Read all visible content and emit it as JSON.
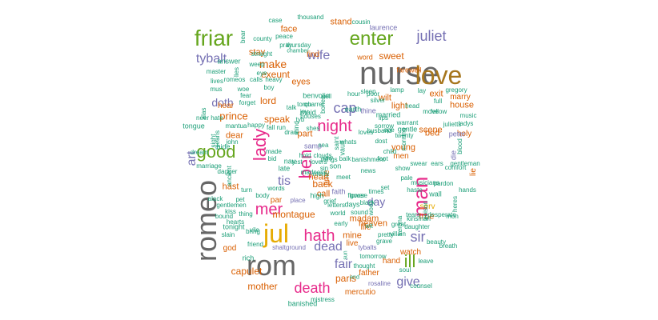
{
  "palette": {
    "slate": "#666666",
    "gold": "#a6761d",
    "magenta": "#e7298a",
    "green": "#66a61e",
    "purple": "#7570b3",
    "orange": "#d95f02",
    "yellow": "#e6ab02",
    "teal": "#1b9e77"
  },
  "words": [
    {
      "text": "nurse",
      "color": "slate"
    },
    {
      "text": "rom",
      "color": "slate"
    },
    {
      "text": "romeo",
      "color": "slate"
    },
    {
      "text": "love",
      "color": "gold"
    },
    {
      "text": "jul",
      "color": "yellow"
    },
    {
      "text": "friar",
      "color": "green"
    },
    {
      "text": "enter",
      "color": "green"
    },
    {
      "text": "juliet",
      "color": "purple"
    },
    {
      "text": "tybalt",
      "color": "purple"
    },
    {
      "text": "good",
      "color": "green"
    },
    {
      "text": "night",
      "color": "magenta"
    },
    {
      "text": "man",
      "color": "magenta"
    },
    {
      "text": "lady",
      "color": "magenta"
    },
    {
      "text": "mer",
      "color": "magenta"
    },
    {
      "text": "hath",
      "color": "magenta"
    },
    {
      "text": "death",
      "color": "magenta"
    },
    {
      "text": "ben",
      "color": "magenta"
    },
    {
      "text": "ill",
      "color": "green"
    },
    {
      "text": "cap",
      "color": "purple"
    },
    {
      "text": "sir",
      "color": "purple"
    },
    {
      "text": "dead",
      "color": "purple"
    },
    {
      "text": "fair",
      "color": "purple"
    },
    {
      "text": "give",
      "color": "purple"
    },
    {
      "text": "wife",
      "color": "purple"
    },
    {
      "text": "day",
      "color": "purple"
    },
    {
      "text": "art",
      "color": "purple"
    },
    {
      "text": "doth",
      "color": "purple"
    },
    {
      "text": "tis",
      "color": "purple"
    },
    {
      "text": "make",
      "color": "orange"
    },
    {
      "text": "exeunt",
      "color": "orange"
    },
    {
      "text": "lord",
      "color": "orange"
    },
    {
      "text": "prince",
      "color": "orange"
    },
    {
      "text": "speak",
      "color": "orange"
    },
    {
      "text": "montague",
      "color": "orange"
    },
    {
      "text": "capulet",
      "color": "orange"
    },
    {
      "text": "paris",
      "color": "orange"
    },
    {
      "text": "mother",
      "color": "orange"
    },
    {
      "text": "mercutio",
      "color": "orange"
    },
    {
      "text": "father",
      "color": "orange"
    },
    {
      "text": "heaven",
      "color": "orange"
    },
    {
      "text": "house",
      "color": "orange"
    },
    {
      "text": "sweet",
      "color": "orange"
    },
    {
      "text": "face",
      "color": "orange"
    },
    {
      "text": "stay",
      "color": "orange"
    },
    {
      "text": "find",
      "color": "orange"
    },
    {
      "text": "eyes",
      "color": "orange"
    },
    {
      "text": "hand",
      "color": "orange"
    },
    {
      "text": "back",
      "color": "orange"
    },
    {
      "text": "heart",
      "color": "orange"
    },
    {
      "text": "call",
      "color": "orange"
    },
    {
      "text": "mine",
      "color": "orange"
    },
    {
      "text": "watch",
      "color": "orange"
    },
    {
      "text": "true",
      "color": "orange"
    },
    {
      "text": "bed",
      "color": "orange"
    },
    {
      "text": "exit",
      "color": "orange"
    },
    {
      "text": "marry",
      "color": "orange"
    },
    {
      "text": "scene",
      "color": "orange"
    },
    {
      "text": "young",
      "color": "orange"
    },
    {
      "text": "light",
      "color": "orange"
    },
    {
      "text": "stand",
      "color": "orange"
    },
    {
      "text": "word",
      "color": "orange"
    },
    {
      "text": "farewell",
      "color": "orange"
    },
    {
      "text": "hast",
      "color": "orange"
    },
    {
      "text": "dear",
      "color": "orange"
    },
    {
      "text": "god",
      "color": "orange"
    },
    {
      "text": "par",
      "color": "orange"
    },
    {
      "text": "part",
      "color": "orange"
    },
    {
      "text": "madam",
      "color": "orange"
    },
    {
      "text": "live",
      "color": "orange"
    },
    {
      "text": "life",
      "color": "orange"
    },
    {
      "text": "wilt",
      "color": "orange"
    },
    {
      "text": "men",
      "color": "orange"
    },
    {
      "text": "holy",
      "color": "orange"
    },
    {
      "text": "lie",
      "color": "orange"
    },
    {
      "text": "hear",
      "color": "orange"
    },
    {
      "text": "time",
      "color": "orange"
    },
    {
      "text": "serv",
      "color": "yellow"
    },
    {
      "text": "die",
      "color": "purple"
    },
    {
      "text": "peter",
      "color": "purple"
    },
    {
      "text": "laurence",
      "color": "purple"
    },
    {
      "text": "shaltground",
      "color": "purple"
    },
    {
      "text": "thine",
      "color": "purple"
    },
    {
      "text": "samp",
      "color": "purple"
    },
    {
      "text": "faith",
      "color": "purple"
    },
    {
      "text": "place",
      "color": "purple"
    },
    {
      "text": "tybalts",
      "color": "purple"
    },
    {
      "text": "rosaline",
      "color": "purple"
    },
    {
      "text": "banished",
      "color": "teal"
    },
    {
      "text": "mistress",
      "color": "teal"
    },
    {
      "text": "tomorrow",
      "color": "teal"
    },
    {
      "text": "thought",
      "color": "teal"
    },
    {
      "text": "soul",
      "color": "teal"
    },
    {
      "text": "leave",
      "color": "teal"
    },
    {
      "text": "end",
      "color": "teal"
    },
    {
      "text": "sun",
      "color": "teal"
    },
    {
      "text": "rich",
      "color": "teal"
    },
    {
      "text": "friend",
      "color": "teal"
    },
    {
      "text": "tonight",
      "color": "teal"
    },
    {
      "text": "slain",
      "color": "teal"
    },
    {
      "text": "kiss",
      "color": "teal"
    },
    {
      "text": "bring",
      "color": "teal"
    },
    {
      "text": "thing",
      "color": "teal"
    },
    {
      "text": "hearts",
      "color": "teal"
    },
    {
      "text": "late",
      "color": "teal"
    },
    {
      "text": "son",
      "color": "teal"
    },
    {
      "text": "earth",
      "color": "teal"
    },
    {
      "text": "poor",
      "color": "teal"
    },
    {
      "text": "hour",
      "color": "teal"
    },
    {
      "text": "cell",
      "color": "teal"
    },
    {
      "text": "benvolio",
      "color": "teal"
    },
    {
      "text": "sleep",
      "color": "teal"
    },
    {
      "text": "silver",
      "color": "teal"
    },
    {
      "text": "master",
      "color": "teal"
    },
    {
      "text": "answer",
      "color": "teal"
    },
    {
      "text": "county",
      "color": "teal"
    },
    {
      "text": "peace",
      "color": "teal"
    },
    {
      "text": "pray",
      "color": "teal"
    },
    {
      "text": "straight",
      "color": "teal"
    },
    {
      "text": "chamber",
      "color": "teal"
    },
    {
      "text": "thursday",
      "color": "teal"
    },
    {
      "text": "thousand",
      "color": "teal"
    },
    {
      "text": "case",
      "color": "teal"
    },
    {
      "text": "cousin",
      "color": "teal"
    },
    {
      "text": "bear",
      "color": "teal"
    },
    {
      "text": "lies",
      "color": "teal"
    },
    {
      "text": "romeos",
      "color": "teal"
    },
    {
      "text": "calls",
      "color": "teal"
    },
    {
      "text": "heavy",
      "color": "teal"
    },
    {
      "text": "eye",
      "color": "teal"
    },
    {
      "text": "woe",
      "color": "teal"
    },
    {
      "text": "weep",
      "color": "teal"
    },
    {
      "text": "lives",
      "color": "teal"
    },
    {
      "text": "mus",
      "color": "teal"
    },
    {
      "text": "fear",
      "color": "teal"
    },
    {
      "text": "forget",
      "color": "teal"
    },
    {
      "text": "boy",
      "color": "teal"
    },
    {
      "text": "hate",
      "color": "teal"
    },
    {
      "text": "tongue",
      "color": "teal"
    },
    {
      "text": "neer",
      "color": "teal"
    },
    {
      "text": "mantua",
      "color": "teal"
    },
    {
      "text": "happy",
      "color": "teal"
    },
    {
      "text": "fall run",
      "color": "teal"
    },
    {
      "text": "mind",
      "color": "teal"
    },
    {
      "text": "houses",
      "color": "teal"
    },
    {
      "text": "talk",
      "color": "teal"
    },
    {
      "text": "torch",
      "color": "teal"
    },
    {
      "text": "quarrel",
      "color": "teal"
    },
    {
      "text": "bones",
      "color": "teal"
    },
    {
      "text": "lamp",
      "color": "teal"
    },
    {
      "text": "lay",
      "color": "teal"
    },
    {
      "text": "gregory",
      "color": "teal"
    },
    {
      "text": "full",
      "color": "teal"
    },
    {
      "text": "head",
      "color": "teal"
    },
    {
      "text": "move",
      "color": "teal"
    },
    {
      "text": "fellow",
      "color": "teal"
    },
    {
      "text": "music",
      "color": "teal"
    },
    {
      "text": "ladys",
      "color": "teal"
    },
    {
      "text": "julietts",
      "color": "teal"
    },
    {
      "text": "twenty",
      "color": "teal"
    },
    {
      "text": "morning",
      "color": "teal"
    },
    {
      "text": "blood",
      "color": "teal"
    },
    {
      "text": "gentle",
      "color": "teal"
    },
    {
      "text": "sorrow",
      "color": "teal"
    },
    {
      "text": "husband",
      "color": "teal"
    },
    {
      "text": "lips",
      "color": "teal"
    },
    {
      "text": "warrant",
      "color": "teal"
    },
    {
      "text": "dost",
      "color": "teal"
    },
    {
      "text": "vault",
      "color": "teal"
    },
    {
      "text": "whats",
      "color": "teal"
    },
    {
      "text": "saint",
      "color": "teal"
    },
    {
      "text": "loves",
      "color": "teal"
    },
    {
      "text": "married",
      "color": "teal"
    },
    {
      "text": "maid",
      "color": "teal"
    },
    {
      "text": "tyb",
      "color": "teal"
    },
    {
      "text": "bid",
      "color": "teal"
    },
    {
      "text": "nay",
      "color": "teal"
    },
    {
      "text": "made",
      "color": "teal"
    },
    {
      "text": "draw",
      "color": "teal"
    },
    {
      "text": "hold",
      "color": "teal"
    },
    {
      "text": "rest",
      "color": "teal"
    },
    {
      "text": "law",
      "color": "teal"
    },
    {
      "text": "balk",
      "color": "teal"
    },
    {
      "text": "clouds",
      "color": "teal"
    },
    {
      "text": "meet",
      "color": "teal"
    },
    {
      "text": "banishment",
      "color": "teal"
    },
    {
      "text": "child",
      "color": "teal"
    },
    {
      "text": "show",
      "color": "teal"
    },
    {
      "text": "ears",
      "color": "teal"
    },
    {
      "text": "comfort",
      "color": "teal"
    },
    {
      "text": "gentleman",
      "color": "teal"
    },
    {
      "text": "swear",
      "color": "teal"
    },
    {
      "text": "pale",
      "color": "teal"
    },
    {
      "text": "haste",
      "color": "teal"
    },
    {
      "text": "wall",
      "color": "teal"
    },
    {
      "text": "pardon",
      "color": "teal"
    },
    {
      "text": "musicians",
      "color": "teal"
    },
    {
      "text": "heres",
      "color": "teal"
    },
    {
      "text": "poison",
      "color": "teal"
    },
    {
      "text": "hands",
      "color": "teal"
    },
    {
      "text": "mon",
      "color": "teal"
    },
    {
      "text": "desperate",
      "color": "teal"
    },
    {
      "text": "daughter",
      "color": "teal"
    },
    {
      "text": "great",
      "color": "teal"
    },
    {
      "text": "beauty",
      "color": "teal"
    },
    {
      "text": "breath",
      "color": "teal"
    },
    {
      "text": "counsel",
      "color": "teal"
    },
    {
      "text": "verona",
      "color": "teal"
    },
    {
      "text": "villain",
      "color": "teal"
    },
    {
      "text": "kinsman",
      "color": "teal"
    },
    {
      "text": "tears",
      "color": "teal"
    },
    {
      "text": "black",
      "color": "teal"
    },
    {
      "text": "flower",
      "color": "teal"
    },
    {
      "text": "world",
      "color": "teal"
    },
    {
      "text": "sound",
      "color": "teal"
    },
    {
      "text": "letters",
      "color": "teal"
    },
    {
      "text": "grief",
      "color": "teal"
    },
    {
      "text": "news",
      "color": "teal"
    },
    {
      "text": "times",
      "color": "teal"
    },
    {
      "text": "alack",
      "color": "teal"
    },
    {
      "text": "gentlemen",
      "color": "teal"
    },
    {
      "text": "body",
      "color": "teal"
    },
    {
      "text": "words",
      "color": "teal"
    },
    {
      "text": "high",
      "color": "teal"
    },
    {
      "text": "ancient",
      "color": "teal"
    },
    {
      "text": "turn",
      "color": "teal"
    },
    {
      "text": "bound",
      "color": "teal"
    },
    {
      "text": "marriage",
      "color": "teal"
    },
    {
      "text": "dagger",
      "color": "teal"
    },
    {
      "text": "dream",
      "color": "teal"
    },
    {
      "text": "alas",
      "color": "teal"
    },
    {
      "text": "hide",
      "color": "teal"
    },
    {
      "text": "john",
      "color": "teal"
    },
    {
      "text": "means",
      "color": "teal"
    },
    {
      "text": "sight",
      "color": "teal"
    },
    {
      "text": "woes",
      "color": "teal"
    },
    {
      "text": "days",
      "color": "teal"
    },
    {
      "text": "early",
      "color": "teal"
    },
    {
      "text": "grave",
      "color": "teal"
    },
    {
      "text": "pretty",
      "color": "teal"
    },
    {
      "text": "goose",
      "color": "teal"
    },
    {
      "text": "merry",
      "color": "teal"
    },
    {
      "text": "madness",
      "color": "teal"
    },
    {
      "text": "lovers",
      "color": "teal"
    },
    {
      "text": "sea",
      "color": "teal"
    },
    {
      "text": "set",
      "color": "teal"
    },
    {
      "text": "pet",
      "color": "teal"
    },
    {
      "text": "wit",
      "color": "teal"
    },
    {
      "text": "joy",
      "color": "teal"
    },
    {
      "text": "shes",
      "color": "teal"
    },
    {
      "text": "ope",
      "color": "teal"
    },
    {
      "text": "foot",
      "color": "teal"
    },
    {
      "text": "sin",
      "color": "teal"
    },
    {
      "text": "vile",
      "color": "teal"
    },
    {
      "text": "things",
      "color": "teal"
    },
    {
      "text": "fellows",
      "color": "teal"
    },
    {
      "text": "send",
      "color": "teal"
    },
    {
      "text": "mens",
      "color": "teal"
    },
    {
      "text": "book",
      "color": "teal"
    },
    {
      "text": "thy",
      "color": "teal"
    },
    {
      "text": "shame",
      "color": "teal"
    },
    {
      "text": "put",
      "color": "teal"
    },
    {
      "text": "star",
      "color": "teal"
    },
    {
      "text": "rom",
      "color": "teal"
    }
  ]
}
